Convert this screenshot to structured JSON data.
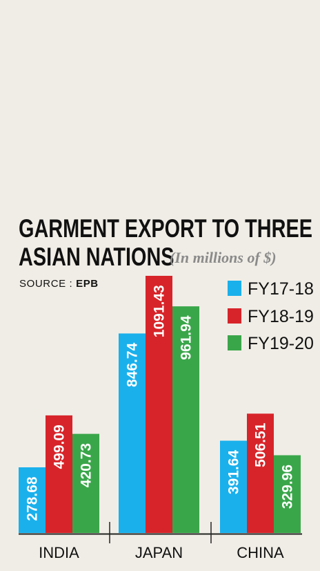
{
  "header": {
    "title_line1": "GARMENT EXPORT TO THREE",
    "title_line2": "ASIAN NATIONS",
    "subtitle": "(In millions of $)",
    "source_label": "SOURCE :",
    "source_value": "EPB"
  },
  "chart_data": {
    "type": "bar",
    "title": "GARMENT EXPORT TO THREE ASIAN NATIONS",
    "subtitle": "(In millions of $)",
    "categories": [
      "INDIA",
      "JAPAN",
      "CHINA"
    ],
    "series": [
      {
        "name": "FY17-18",
        "color": "#1ab0ec",
        "values": [
          278.68,
          846.74,
          391.64
        ],
        "labels": [
          "278.68",
          "846.74",
          "391.64"
        ]
      },
      {
        "name": "FY18-19",
        "color": "#d7242a",
        "values": [
          499.09,
          1091.43,
          506.51
        ],
        "labels": [
          "499.09",
          "1091.43",
          "506.51"
        ]
      },
      {
        "name": "FY19-20",
        "color": "#3aa64a",
        "values": [
          420.73,
          961.94,
          329.96
        ],
        "labels": [
          "420.73",
          "961.94",
          "329.96"
        ]
      }
    ],
    "legend_position": "top-right",
    "grid": false,
    "ylim": [
      0,
      1091.43
    ]
  }
}
